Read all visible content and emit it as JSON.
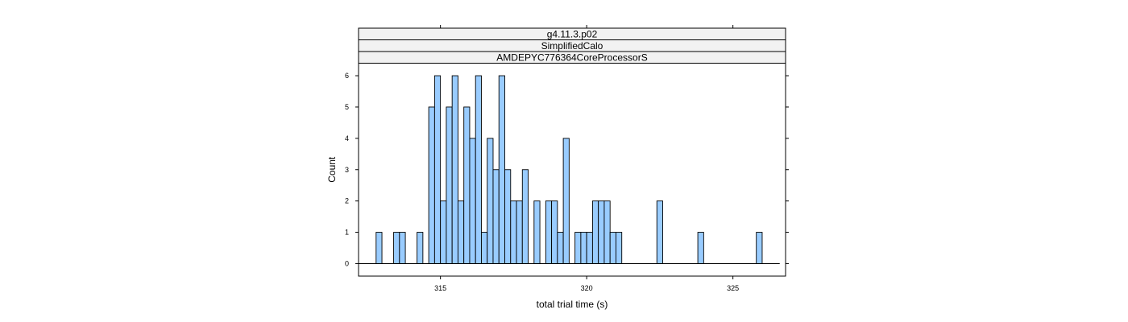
{
  "chart_data": {
    "type": "bar",
    "strips": [
      "g4.11.3.p02",
      "SimplifiedCalo",
      "AMDEPYC776364CoreProcessorS"
    ],
    "xlabel": "total trial time (s)",
    "ylabel": "Count",
    "xlim": [
      312.2,
      326.8
    ],
    "ylim": [
      -0.4,
      6.4
    ],
    "x_ticks": [
      315,
      320,
      325
    ],
    "y_ticks": [
      0,
      1,
      2,
      3,
      4,
      5,
      6
    ],
    "bin_start": 312.2,
    "bin_width": 0.2,
    "counts": [
      0,
      0,
      0,
      1,
      0,
      0,
      1,
      1,
      0,
      0,
      1,
      0,
      5,
      6,
      2,
      5,
      6,
      2,
      5,
      4,
      6,
      1,
      4,
      3,
      6,
      3,
      2,
      2,
      3,
      0,
      2,
      0,
      2,
      2,
      1,
      4,
      0,
      1,
      1,
      1,
      2,
      2,
      2,
      1,
      1,
      0,
      0,
      0,
      0,
      0,
      0,
      2,
      0,
      0,
      0,
      0,
      0,
      0,
      1,
      0,
      0,
      0,
      0,
      0,
      0,
      0,
      0,
      0,
      1,
      0,
      0,
      0
    ],
    "colors": {
      "bar_fill": "#99ccff",
      "bar_stroke": "#000000",
      "strip_fill": "#f2f2f2",
      "frame": "#000000"
    }
  }
}
